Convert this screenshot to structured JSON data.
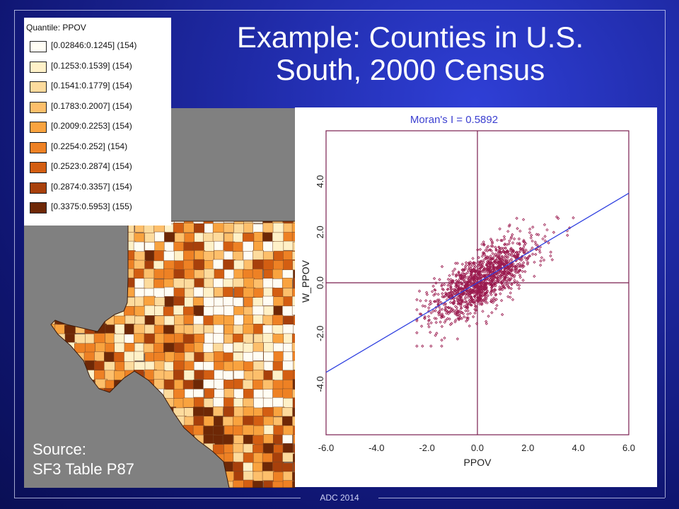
{
  "slide": {
    "title_line1": "Example: Counties in U.S.",
    "title_line2": "South,  2000 Census",
    "footer": "ADC 2014",
    "source_line1": "Source:",
    "source_line2": "SF3 Table P87"
  },
  "legend": {
    "title": "Quantile: PPOV",
    "items": [
      {
        "label": "[0.02846:0.1245] (154)",
        "color": "#fffdf4"
      },
      {
        "label": "[0.1253:0.1539] (154)",
        "color": "#fff1c8"
      },
      {
        "label": "[0.1541:0.1779] (154)",
        "color": "#fddb9d"
      },
      {
        "label": "[0.1783:0.2007] (154)",
        "color": "#fdbf6b"
      },
      {
        "label": "[0.2009:0.2253] (154)",
        "color": "#f9a33f"
      },
      {
        "label": "[0.2254:0.252] (154)",
        "color": "#ee8124"
      },
      {
        "label": "[0.2523:0.2874] (154)",
        "color": "#d35e12"
      },
      {
        "label": "[0.2874:0.3357] (154)",
        "color": "#a8400b"
      },
      {
        "label": "[0.3375:0.5953] (155)",
        "color": "#6e2806"
      }
    ]
  },
  "chart_data": {
    "type": "scatter",
    "title": "Moran's I = 0.5892",
    "xlabel": "PPOV",
    "ylabel": "W_PPOV",
    "xlim": [
      -6.0,
      6.0
    ],
    "ylim": [
      -6.0,
      6.0
    ],
    "xticks": [
      "-6.0",
      "-4.0",
      "-2.0",
      "0.0",
      "2.0",
      "4.0",
      "6.0"
    ],
    "yticks": [
      "-4.0",
      "-2.0",
      "0.0",
      "2.0",
      "4.0"
    ],
    "slope": 0.5892,
    "point_count": 1387,
    "point_color": "#9b1b4f",
    "line_color": "#2f40e0",
    "axis_color": "#7a1f4f"
  }
}
